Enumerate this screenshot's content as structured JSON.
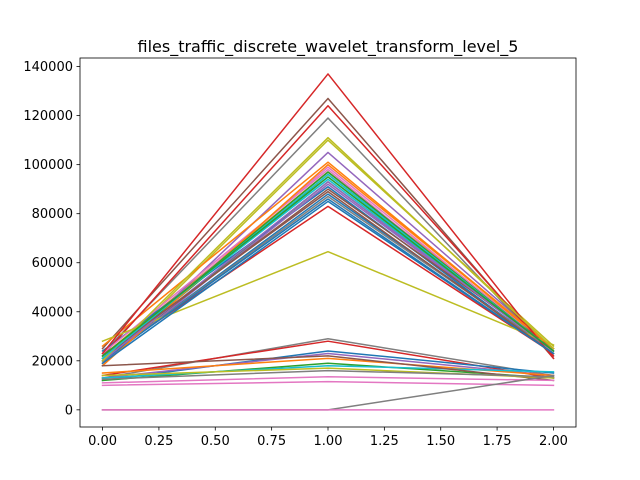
{
  "chart_data": {
    "type": "line",
    "title": "files_traffic_discrete_wavelet_transform_level_5",
    "xlabel": "",
    "ylabel": "",
    "x": [
      0,
      1,
      2
    ],
    "xlim": [
      -0.1,
      2.1
    ],
    "ylim": [
      -7000,
      143500
    ],
    "xticks": [
      0.0,
      0.25,
      0.5,
      0.75,
      1.0,
      1.25,
      1.5,
      1.75,
      2.0
    ],
    "xtick_labels": [
      "0.00",
      "0.25",
      "0.50",
      "0.75",
      "1.00",
      "1.25",
      "1.50",
      "1.75",
      "2.00"
    ],
    "yticks": [
      0,
      20000,
      40000,
      60000,
      80000,
      100000,
      120000,
      140000
    ],
    "ytick_labels": [
      "0",
      "20000",
      "40000",
      "60000",
      "80000",
      "100000",
      "120000",
      "140000"
    ],
    "grid": false,
    "legend": false,
    "series": [
      {
        "color": "#1f77b4",
        "values": [
          20000,
          88000,
          24000
        ]
      },
      {
        "color": "#ff7f0e",
        "values": [
          22000,
          97000,
          25000
        ]
      },
      {
        "color": "#2ca02c",
        "values": [
          19000,
          93000,
          24000
        ]
      },
      {
        "color": "#d62728",
        "values": [
          21000,
          83000,
          23000
        ]
      },
      {
        "color": "#9467bd",
        "values": [
          18000,
          105000,
          25000
        ]
      },
      {
        "color": "#8c564b",
        "values": [
          25000,
          127000,
          21000
        ]
      },
      {
        "color": "#e377c2",
        "values": [
          20000,
          99000,
          24000
        ]
      },
      {
        "color": "#7f7f7f",
        "values": [
          23000,
          119000,
          22000
        ]
      },
      {
        "color": "#bcbd22",
        "values": [
          19000,
          110000,
          26000
        ]
      },
      {
        "color": "#17becf",
        "values": [
          21000,
          95000,
          24000
        ]
      },
      {
        "color": "#1f77b4",
        "values": [
          24000,
          91000,
          23000
        ]
      },
      {
        "color": "#ff7f0e",
        "values": [
          26000,
          101000,
          25000
        ]
      },
      {
        "color": "#2ca02c",
        "values": [
          20000,
          96000,
          24000
        ]
      },
      {
        "color": "#d62728",
        "values": [
          22000,
          124000,
          22000
        ]
      },
      {
        "color": "#9467bd",
        "values": [
          19000,
          92000,
          24000
        ]
      },
      {
        "color": "#8c564b",
        "values": [
          21000,
          90000,
          25000
        ]
      },
      {
        "color": "#e377c2",
        "values": [
          23000,
          98000,
          23000
        ]
      },
      {
        "color": "#7f7f7f",
        "values": [
          20000,
          87000,
          24000
        ]
      },
      {
        "color": "#bcbd22",
        "values": [
          28000,
          64500,
          26500
        ]
      },
      {
        "color": "#17becf",
        "values": [
          22000,
          94000,
          24000
        ]
      },
      {
        "color": "#1f77b4",
        "values": [
          20000,
          86000,
          23000
        ]
      },
      {
        "color": "#ff7f0e",
        "values": [
          18000,
          100000,
          25000
        ]
      },
      {
        "color": "#2ca02c",
        "values": [
          21000,
          97000,
          24000
        ]
      },
      {
        "color": "#d62728",
        "values": [
          23000,
          137000,
          21000
        ]
      },
      {
        "color": "#9467bd",
        "values": [
          20000,
          93000,
          24000
        ]
      },
      {
        "color": "#8c564b",
        "values": [
          22000,
          89000,
          23000
        ]
      },
      {
        "color": "#bcbd22",
        "values": [
          20000,
          111000,
          25000
        ]
      },
      {
        "color": "#17becf",
        "values": [
          21000,
          96000,
          24000
        ]
      },
      {
        "color": "#1f77b4",
        "values": [
          19000,
          85000,
          23000
        ]
      },
      {
        "color": "#2ca02c",
        "values": [
          22000,
          95000,
          24000
        ]
      },
      {
        "color": "#7f7f7f",
        "values": [
          13000,
          29000,
          14000
        ]
      },
      {
        "color": "#d62728",
        "values": [
          14000,
          28000,
          13000
        ]
      },
      {
        "color": "#1f77b4",
        "values": [
          12000,
          24000,
          15000
        ]
      },
      {
        "color": "#9467bd",
        "values": [
          13000,
          23000,
          14000
        ]
      },
      {
        "color": "#ff7f0e",
        "values": [
          15000,
          21000,
          14000
        ]
      },
      {
        "color": "#2ca02c",
        "values": [
          12000,
          19000,
          13000
        ]
      },
      {
        "color": "#17becf",
        "values": [
          13000,
          18000,
          15500
        ]
      },
      {
        "color": "#8c564b",
        "values": [
          18000,
          22000,
          12000
        ]
      },
      {
        "color": "#bcbd22",
        "values": [
          14000,
          17000,
          13000
        ]
      },
      {
        "color": "#e377c2",
        "values": [
          11000,
          13500,
          12000
        ]
      },
      {
        "color": "#7f7f7f",
        "values": [
          12500,
          16000,
          13500
        ]
      },
      {
        "color": "#e377c2",
        "values": [
          10000,
          11500,
          10000
        ]
      },
      {
        "color": "#7f7f7f",
        "values": [
          0,
          0,
          14000
        ]
      },
      {
        "color": "#e377c2",
        "values": [
          0,
          0,
          0
        ]
      }
    ]
  }
}
